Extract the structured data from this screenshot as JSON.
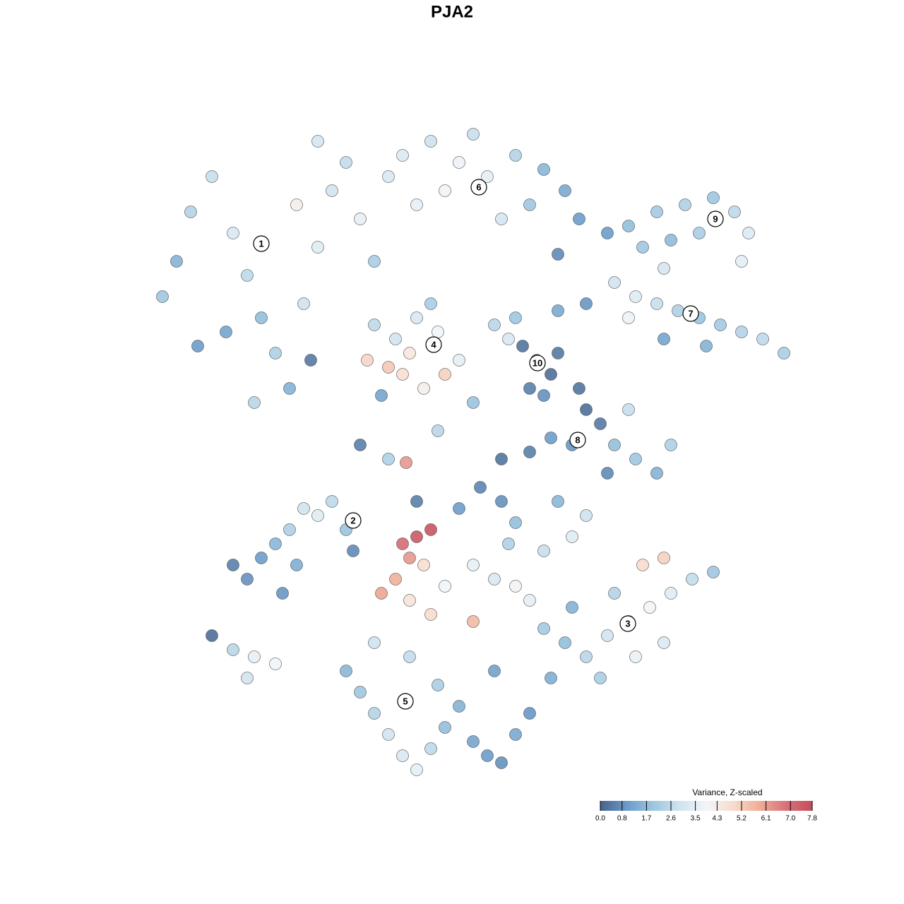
{
  "chart_data": {
    "type": "scatter",
    "title": "PJA2",
    "xlim": [
      0,
      100
    ],
    "ylim": [
      0,
      100
    ],
    "x": [
      8,
      10,
      12,
      15,
      18,
      20,
      22,
      24,
      26,
      28,
      30,
      32,
      34,
      36,
      38,
      17,
      21,
      13,
      27,
      30,
      42,
      46,
      50,
      54,
      58,
      62,
      65,
      60,
      56,
      48,
      44,
      40,
      52,
      67,
      74,
      78,
      82,
      86,
      89,
      91,
      90,
      84,
      80,
      76,
      72,
      75,
      78,
      81,
      84,
      87,
      90,
      93,
      96,
      85,
      79,
      74,
      59,
      61,
      63,
      60,
      62,
      64,
      55,
      58,
      64,
      68,
      67,
      68,
      70,
      66,
      63,
      60,
      56,
      72,
      75,
      78,
      80,
      74,
      71,
      37,
      40,
      42,
      45,
      48,
      50,
      47,
      44,
      41,
      38,
      39,
      46,
      43,
      18,
      20,
      22,
      24,
      26,
      28,
      30,
      32,
      34,
      25,
      27,
      35,
      15,
      18,
      21,
      24,
      20,
      42,
      44,
      46,
      43,
      45,
      41,
      39,
      43,
      46,
      52,
      48,
      52,
      55,
      58,
      60,
      57,
      50,
      53,
      58,
      62,
      66,
      68,
      64,
      56,
      44,
      42.5,
      62,
      65,
      68,
      71,
      74,
      77,
      80,
      83,
      86,
      72,
      70,
      75,
      79,
      66,
      76,
      79,
      63,
      34,
      36,
      38,
      40,
      42,
      44,
      46,
      48,
      50,
      52,
      54,
      56,
      58,
      47,
      43,
      38,
      55,
      60,
      40,
      36,
      29,
      47,
      52,
      57,
      64,
      71,
      79
    ],
    "y": [
      73,
      78,
      85,
      90,
      82,
      76,
      70,
      65,
      60,
      72,
      80,
      88,
      92,
      84,
      78,
      68,
      58,
      66,
      86,
      95,
      93,
      95,
      92,
      90,
      93,
      91,
      88,
      86,
      84,
      88,
      86,
      90,
      96,
      84,
      83,
      85,
      86,
      87,
      85,
      82,
      78,
      82,
      81,
      80,
      75,
      73,
      72,
      71,
      70,
      69,
      68,
      67,
      65,
      66,
      67,
      70,
      66,
      64,
      62,
      60,
      59,
      65,
      69,
      70,
      71,
      72,
      60,
      57,
      55,
      52,
      53,
      51,
      50,
      52,
      50,
      48,
      52,
      57,
      48,
      64,
      63,
      62,
      60,
      62,
      64,
      68,
      70,
      67,
      69,
      59,
      72,
      65,
      35,
      33,
      36,
      38,
      40,
      43,
      42,
      44,
      40,
      31,
      35,
      37,
      25,
      23,
      22,
      21,
      19,
      38,
      39,
      40,
      36,
      35,
      33,
      31,
      30,
      28,
      27,
      32,
      35,
      33,
      32,
      30,
      38,
      43,
      46,
      41,
      37,
      39,
      42,
      44,
      44,
      44,
      49.5,
      26,
      24,
      22,
      25,
      27,
      29,
      31,
      33,
      34,
      31,
      19,
      22,
      24,
      29,
      35,
      36,
      19,
      20,
      17,
      14,
      11,
      8,
      6,
      9,
      12,
      15,
      10,
      8,
      7,
      11,
      18,
      22,
      24,
      20,
      14,
      50,
      52,
      64,
      54,
      58,
      67,
      79,
      82,
      77
    ],
    "values": [
      2.0,
      1.5,
      2.4,
      2.8,
      3.2,
      2.6,
      1.8,
      2.3,
      1.5,
      2.9,
      3.4,
      3.0,
      2.7,
      3.6,
      2.2,
      1.2,
      2.5,
      1.0,
      4.2,
      3.1,
      3.3,
      2.9,
      3.8,
      3.5,
      2.4,
      1.6,
      1.3,
      2.0,
      3.1,
      4.0,
      3.6,
      3.2,
      2.8,
      1.0,
      1.8,
      2.1,
      2.3,
      2.0,
      2.6,
      3.3,
      3.5,
      2.2,
      1.7,
      2.0,
      3.0,
      3.4,
      2.8,
      2.3,
      1.9,
      2.1,
      2.4,
      2.6,
      2.2,
      1.5,
      1.2,
      3.8,
      0.3,
      0.6,
      0.2,
      0.5,
      0.8,
      0.4,
      2.5,
      2.0,
      1.3,
      0.9,
      0.3,
      0.2,
      0.4,
      0.9,
      1.0,
      0.5,
      0.3,
      1.8,
      2.0,
      1.5,
      2.3,
      2.8,
      0.7,
      5.0,
      5.3,
      4.8,
      4.2,
      5.1,
      3.5,
      3.9,
      3.2,
      3.0,
      2.6,
      1.2,
      2.2,
      4.5,
      0.5,
      0.8,
      1.0,
      1.6,
      2.3,
      3.0,
      3.4,
      2.6,
      1.9,
      0.9,
      1.4,
      0.7,
      0.2,
      2.5,
      3.6,
      3.9,
      3.0,
      7.0,
      7.5,
      7.6,
      6.2,
      4.8,
      5.8,
      6.0,
      4.6,
      4.9,
      5.6,
      3.9,
      3.6,
      3.2,
      4.0,
      3.5,
      2.3,
      1.0,
      0.6,
      1.8,
      2.8,
      3.4,
      2.9,
      1.6,
      0.8,
      0.5,
      6.2,
      2.1,
      1.8,
      2.5,
      3.0,
      3.6,
      3.9,
      3.4,
      2.7,
      2.0,
      2.4,
      2.2,
      3.7,
      3.3,
      1.5,
      4.9,
      5.1,
      1.4,
      1.6,
      2.0,
      2.4,
      3.0,
      3.2,
      3.5,
      2.6,
      1.8,
      1.5,
      1.2,
      1.0,
      0.8,
      1.3,
      2.2,
      2.7,
      2.9,
      1.1,
      0.9,
      2.3,
      0.5,
      0.4,
      2.5,
      1.9,
      3.2,
      0.7,
      1.0,
      3.1
    ],
    "clusters": [
      {
        "label": "1",
        "x": 22,
        "y": 80.5
      },
      {
        "label": "2",
        "x": 35,
        "y": 41.3
      },
      {
        "label": "3",
        "x": 73.9,
        "y": 26.7
      },
      {
        "label": "4",
        "x": 46.4,
        "y": 66.2
      },
      {
        "label": "5",
        "x": 42.4,
        "y": 15.7
      },
      {
        "label": "6",
        "x": 52.8,
        "y": 88.5
      },
      {
        "label": "7",
        "x": 82.8,
        "y": 70.6
      },
      {
        "label": "8",
        "x": 66.8,
        "y": 52.7
      },
      {
        "label": "9",
        "x": 86.3,
        "y": 84
      },
      {
        "label": "10",
        "x": 61.1,
        "y": 63.6
      }
    ],
    "colorbar": {
      "title": "Variance, Z-scaled",
      "clim": [
        0,
        7.8
      ],
      "colors": [
        "#47628c",
        "#6b9bc9",
        "#9cc6e0",
        "#cfe3ef",
        "#f2f5f8",
        "#f8dccd",
        "#efae96",
        "#d9727a",
        "#c44e5b"
      ],
      "ticks": [
        {
          "value": 0,
          "label": "0.0"
        },
        0.8,
        1.7,
        2.6,
        3.5,
        4.3,
        5.2,
        6.1,
        {
          "value": 7,
          "label": "7.0"
        },
        7.8
      ]
    }
  }
}
